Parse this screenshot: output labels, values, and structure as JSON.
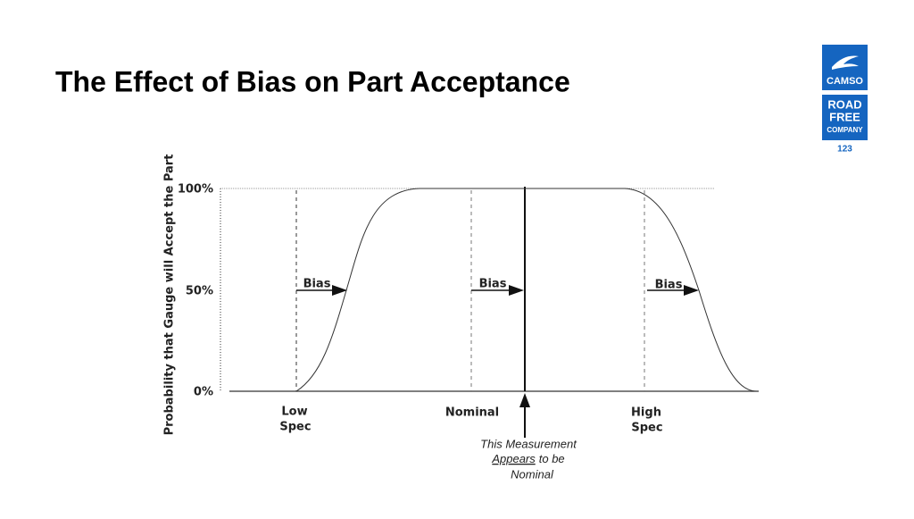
{
  "header": {
    "title": "The Effect of Bias on Part Acceptance"
  },
  "logo": {
    "brand": "CAMSO",
    "lines": [
      "ROAD",
      "FREE",
      "COMPANY"
    ]
  },
  "page_number": "123",
  "figure": {
    "y_axis_title": "Probability that Gauge will Accept the Part",
    "y_labels": [
      "100%",
      "50%",
      "0%"
    ],
    "bias_labels": [
      "Bias",
      "Bias",
      "Bias"
    ],
    "x_labels": [
      {
        "lines": [
          "Low",
          "Spec"
        ]
      },
      {
        "lines": [
          "Nominal"
        ]
      },
      {
        "lines": [
          "High",
          "Spec"
        ]
      }
    ],
    "annotation": {
      "first": "This Measurement",
      "underlined": "Appears",
      "rest": "to be",
      "last": "Nominal"
    }
  }
}
